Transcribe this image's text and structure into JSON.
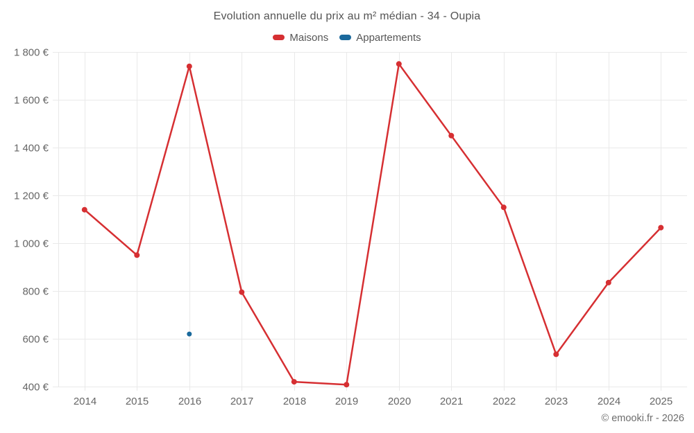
{
  "title": "Evolution annuelle du prix au m² médian - 34 - Oupia",
  "legend": [
    {
      "label": "Maisons",
      "color": "#d62f32"
    },
    {
      "label": "Appartements",
      "color": "#1a699c"
    }
  ],
  "copyright": "© emooki.fr - 2026",
  "colors": {
    "maisons": "#d62f32",
    "appartements": "#1a699c",
    "grid": "#e9e9e9",
    "axis_text": "#666666"
  },
  "chart_data": {
    "type": "line",
    "title": "Evolution annuelle du prix au m² médian - 34 - Oupia",
    "x": [
      2014,
      2015,
      2016,
      2017,
      2018,
      2019,
      2020,
      2021,
      2022,
      2023,
      2024,
      2025
    ],
    "series": [
      {
        "name": "Maisons",
        "color": "#d62f32",
        "values": [
          1140,
          950,
          1740,
          795,
          420,
          408,
          1750,
          1450,
          1150,
          535,
          835,
          1065
        ]
      },
      {
        "name": "Appartements",
        "color": "#1a699c",
        "values": [
          null,
          null,
          620,
          null,
          null,
          null,
          null,
          null,
          null,
          null,
          null,
          null
        ]
      }
    ],
    "ylim": [
      400,
      1800
    ],
    "ytick_step": 200,
    "ytick_labels": [
      "400 €",
      "600 €",
      "800 €",
      "1 000 €",
      "1 200 €",
      "1 400 €",
      "1 600 €",
      "1 800 €"
    ],
    "xlabel": "",
    "ylabel": "",
    "grid": true,
    "legend_position": "top-center"
  }
}
